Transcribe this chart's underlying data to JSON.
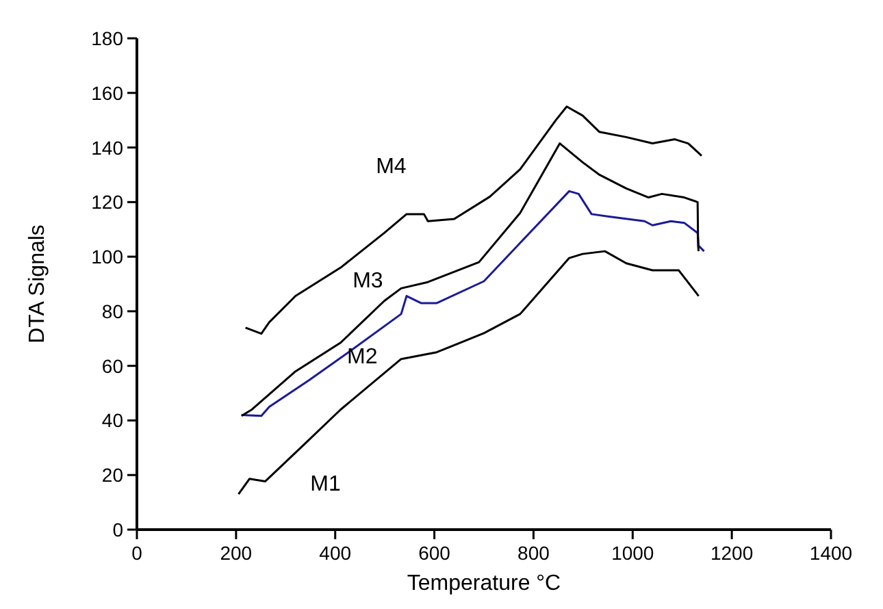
{
  "chart_data": {
    "type": "line",
    "xlabel": "Temperature °C",
    "ylabel": "DTA Signals",
    "xlim": [
      0,
      1400
    ],
    "xticks": [
      0,
      200,
      400,
      600,
      800,
      1000,
      1200,
      1400
    ],
    "ylim": [
      0,
      180
    ],
    "yticks": [
      0,
      20,
      40,
      60,
      80,
      100,
      120,
      140,
      160,
      180
    ],
    "grid": false,
    "line_style": "solid",
    "series": [
      {
        "name": "M1",
        "color": "#000000",
        "x": [
          205,
          227,
          259,
          339,
          411,
          533,
          605,
          700,
          773,
          872,
          899,
          944,
          987,
          1040,
          1093,
          1133
        ],
        "values": [
          13,
          18.6,
          17.7,
          31.5,
          44,
          62.5,
          65,
          72,
          79,
          99.5,
          101,
          102,
          97.6,
          95,
          95,
          85.6
        ]
      },
      {
        "name": "M2",
        "color": "#1a1a9a",
        "x": [
          211,
          251,
          267,
          347,
          427,
          533,
          544,
          573,
          605,
          700,
          792,
          872,
          891,
          917,
          952,
          1024,
          1040,
          1077,
          1104,
          1131,
          1133,
          1144
        ],
        "values": [
          42,
          41.7,
          45,
          54.7,
          65,
          79,
          85.6,
          83,
          83,
          91,
          108.7,
          124,
          123,
          115.6,
          114.7,
          113,
          111.5,
          113,
          112.4,
          108.7,
          104,
          102
        ]
      },
      {
        "name": "M3",
        "color": "#000000",
        "x": [
          211,
          232,
          320,
          411,
          499,
          533,
          587,
          690,
          773,
          853,
          899,
          933,
          987,
          1032,
          1059,
          1104,
          1131,
          1132,
          1133
        ],
        "values": [
          41.7,
          44,
          58,
          68.5,
          83.8,
          88.4,
          90.7,
          98,
          116,
          141.5,
          134.6,
          130,
          125,
          121.7,
          123,
          121.7,
          120,
          104,
          102
        ]
      },
      {
        "name": "M4",
        "color": "#000000",
        "x": [
          219,
          251,
          267,
          320,
          411,
          499,
          544,
          579,
          587,
          640,
          712,
          773,
          845,
          867,
          899,
          933,
          987,
          1040,
          1085,
          1112,
          1139
        ],
        "values": [
          74,
          71.8,
          76,
          85.6,
          96,
          108.7,
          115.6,
          115.6,
          113,
          113.8,
          122,
          132,
          150,
          155,
          151.7,
          145.7,
          143.8,
          141.5,
          143,
          141.5,
          137
        ]
      }
    ]
  }
}
